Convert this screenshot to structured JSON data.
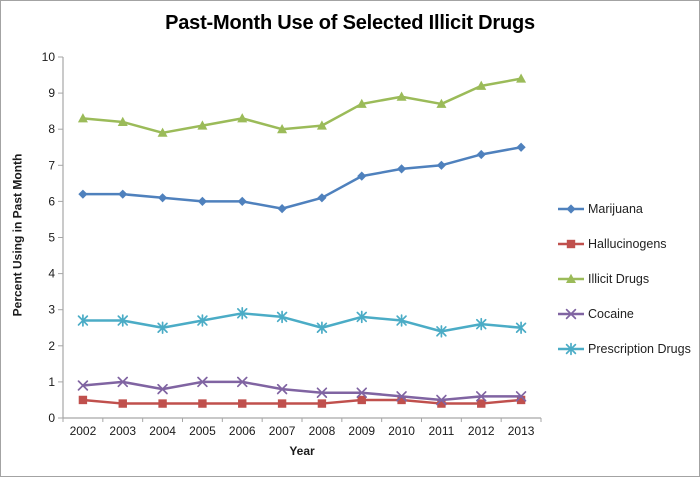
{
  "chart_data": {
    "type": "line",
    "title": "Past-Month Use of Selected Illicit Drugs",
    "xlabel": "Year",
    "ylabel": "Percent Using in Past Month",
    "categories": [
      "2002",
      "2003",
      "2004",
      "2005",
      "2006",
      "2007",
      "2008",
      "2009",
      "2010",
      "2011",
      "2012",
      "2013"
    ],
    "ylim": [
      0,
      10
    ],
    "ytick_interval": 1,
    "grid": false,
    "legend_position": "right",
    "axis_color": "#a6a6a6",
    "text_color": "#1a1a1a",
    "series": [
      {
        "name": "Marijuana",
        "color": "#4f81bd",
        "marker": "diamond",
        "values": [
          6.2,
          6.2,
          6.1,
          6.0,
          6.0,
          5.8,
          6.1,
          6.7,
          6.9,
          7.0,
          7.3,
          7.5
        ]
      },
      {
        "name": "Hallucinogens",
        "color": "#c0504d",
        "marker": "square",
        "values": [
          0.5,
          0.4,
          0.4,
          0.4,
          0.4,
          0.4,
          0.4,
          0.5,
          0.5,
          0.4,
          0.4,
          0.5
        ]
      },
      {
        "name": "Illicit Drugs",
        "color": "#9bbb59",
        "marker": "triangle",
        "values": [
          8.3,
          8.2,
          7.9,
          8.1,
          8.3,
          8.0,
          8.1,
          8.7,
          8.9,
          8.7,
          9.2,
          9.4
        ]
      },
      {
        "name": "Cocaine",
        "color": "#8064a2",
        "marker": "x",
        "values": [
          0.9,
          1.0,
          0.8,
          1.0,
          1.0,
          0.8,
          0.7,
          0.7,
          0.6,
          0.5,
          0.6,
          0.6
        ]
      },
      {
        "name": "Prescription Drugs",
        "color": "#4bacc6",
        "marker": "star",
        "values": [
          2.7,
          2.7,
          2.5,
          2.7,
          2.9,
          2.8,
          2.5,
          2.8,
          2.7,
          2.4,
          2.6,
          2.5
        ]
      }
    ]
  }
}
